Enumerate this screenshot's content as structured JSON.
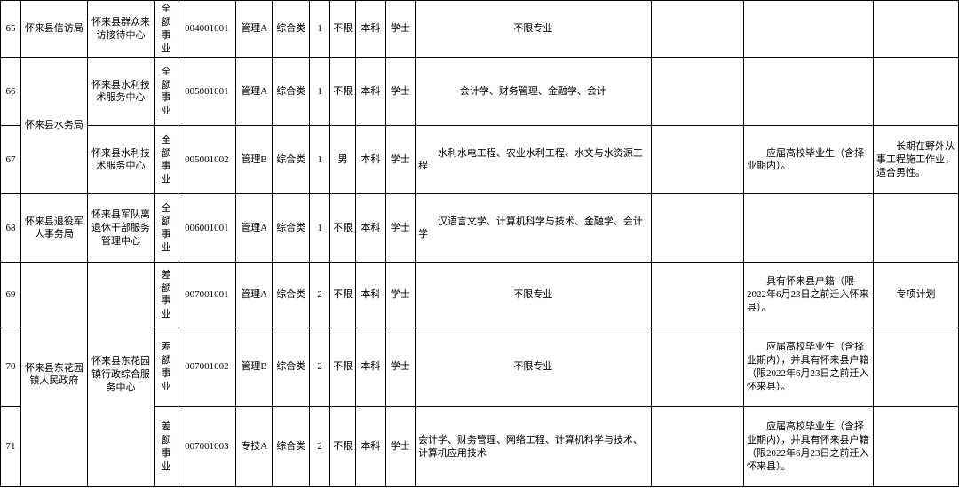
{
  "rows": [
    {
      "idx": "65",
      "org": "怀来县信访局",
      "unit": "怀来县群众来访接待中心",
      "type": "全额事业",
      "code": "004001001",
      "pos": "管理A",
      "cat": "综合类",
      "num": "1",
      "sex": "不限",
      "edu": "本科",
      "deg": "学士",
      "major": "不限专业",
      "req1": "",
      "req2": "",
      "note": ""
    },
    {
      "idx": "66",
      "org": "怀来县水务局",
      "unit": "怀来县水利技术服务中心",
      "type": "全额事业",
      "code": "005001001",
      "pos": "管理A",
      "cat": "综合类",
      "num": "1",
      "sex": "不限",
      "edu": "本科",
      "deg": "学士",
      "major": "会计学、财务管理、金融学、会计",
      "req1": "",
      "req2": "",
      "note": ""
    },
    {
      "idx": "67",
      "unit": "怀来县水利技术服务中心",
      "type": "全额事业",
      "code": "005001002",
      "pos": "管理B",
      "cat": "综合类",
      "num": "1",
      "sex": "男",
      "edu": "本科",
      "deg": "学士",
      "major": "　　水利水电工程、农业水利工程、水文与水资源工程",
      "req1": "",
      "req2": "　　应届高校毕业生（含择业期内）。",
      "note": "　　长期在野外从事工程施工作业，适合男性。"
    },
    {
      "idx": "68",
      "org": "怀来县退役军人事务局",
      "unit": "怀来县军队离退休干部服务管理中心",
      "type": "全额事业",
      "code": "006001001",
      "pos": "管理A",
      "cat": "综合类",
      "num": "1",
      "sex": "不限",
      "edu": "本科",
      "deg": "学士",
      "major": "　　汉语言文学、计算机科学与技术、金融学、会计学",
      "req1": "",
      "req2": "",
      "note": ""
    },
    {
      "idx": "69",
      "org": "怀来县东花园镇人民政府",
      "unit": "怀来县东花园镇行政综合服务中心",
      "type": "差额事业",
      "code": "007001001",
      "pos": "管理A",
      "cat": "综合类",
      "num": "2",
      "sex": "不限",
      "edu": "本科",
      "deg": "学士",
      "major": "不限专业",
      "req1": "",
      "req2": "　　具有怀来县户籍（限2022年6月23日之前迁入怀来县）。",
      "note": "专项计划"
    },
    {
      "idx": "70",
      "type": "差额事业",
      "code": "007001002",
      "pos": "管理B",
      "cat": "综合类",
      "num": "2",
      "sex": "不限",
      "edu": "本科",
      "deg": "学士",
      "major": "不限专业",
      "req1": "",
      "req2": "　　应届高校毕业生（含择业期内），并具有怀来县户籍（限2022年6月23日之前迁入怀来县）。",
      "note": ""
    },
    {
      "idx": "71",
      "type": "差额事业",
      "code": "007001003",
      "pos": "专技A",
      "cat": "综合类",
      "num": "2",
      "sex": "不限",
      "edu": "本科",
      "deg": "学士",
      "major": "会计学、财务管理、网络工程、计算机科学与技术、计算机应用技术",
      "req1": "",
      "req2": "　　应届高校毕业生（含择业期内），并具有怀来县户籍（限2022年6月23日之前迁入怀来县）。",
      "note": ""
    }
  ]
}
